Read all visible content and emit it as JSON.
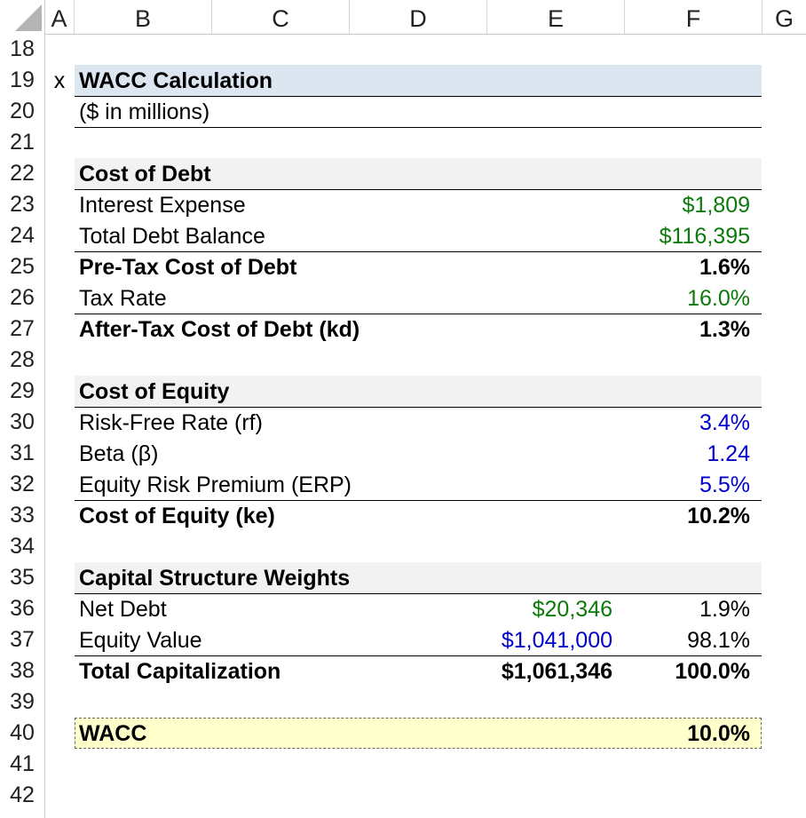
{
  "columns": [
    "A",
    "B",
    "C",
    "D",
    "E",
    "F",
    "G"
  ],
  "rows": [
    "18",
    "19",
    "20",
    "21",
    "22",
    "23",
    "24",
    "25",
    "26",
    "27",
    "28",
    "29",
    "30",
    "31",
    "32",
    "33",
    "34",
    "35",
    "36",
    "37",
    "38",
    "39",
    "40",
    "41",
    "42"
  ],
  "marker": "x",
  "title": "WACC Calculation",
  "subtitle": "($ in millions)",
  "colors": {
    "header_band": "#dce6f1",
    "section_band": "#f2f2f2",
    "wacc_band": "#ffffcc",
    "input_green": "#0b7a0b",
    "input_blue": "#0000cc"
  },
  "cost_of_debt": {
    "header": "Cost of Debt",
    "interest_expense_label": "Interest Expense",
    "interest_expense_value": "$1,809",
    "total_debt_label": "Total Debt Balance",
    "total_debt_value": "$116,395",
    "pretax_label": "Pre-Tax Cost of Debt",
    "pretax_value": "1.6%",
    "tax_rate_label": "Tax Rate",
    "tax_rate_value": "16.0%",
    "aftertax_label": "After-Tax Cost of Debt (kd)",
    "aftertax_value": "1.3%"
  },
  "cost_of_equity": {
    "header": "Cost of Equity",
    "rf_label": "Risk-Free Rate (rf)",
    "rf_value": "3.4%",
    "beta_label": "Beta (β)",
    "beta_value": "1.24",
    "erp_label": "Equity Risk Premium (ERP)",
    "erp_value": "5.5%",
    "ke_label": "Cost of Equity (ke)",
    "ke_value": "10.2%"
  },
  "capital_structure": {
    "header": "Capital Structure Weights",
    "net_debt_label": "Net Debt",
    "net_debt_amount": "$20,346",
    "net_debt_weight": "1.9%",
    "equity_label": "Equity Value",
    "equity_amount": "$1,041,000",
    "equity_weight": "98.1%",
    "total_label": "Total Capitalization",
    "total_amount": "$1,061,346",
    "total_weight": "100.0%"
  },
  "wacc": {
    "label": "WACC",
    "value": "10.0%"
  }
}
